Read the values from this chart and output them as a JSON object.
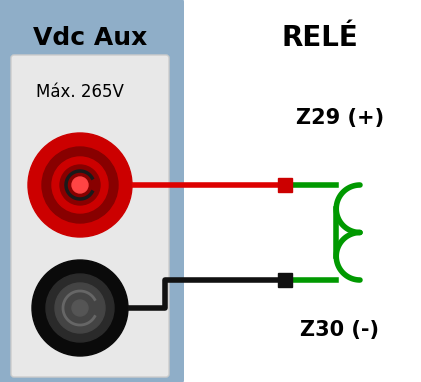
{
  "title_left": "Vdc Aux",
  "title_right": "RELÉ",
  "subtitle_left": "Máx. 265V",
  "label_z29": "Z29 (+)",
  "label_z30": "Z30 (-)",
  "bg_color": "#ffffff",
  "outer_panel_bg": "#8faec8",
  "inner_panel_bg": "#e8e8e8",
  "inner_panel_border": "#cccccc",
  "red_outer": "#cc0000",
  "red_mid1": "#aa0000",
  "red_mid2": "#880000",
  "red_arc_color": "#222222",
  "red_inner": "#ff4444",
  "black_outer": "#0a0a0a",
  "black_mid1": "#2a2a2a",
  "black_mid2": "#444444",
  "black_arc_color": "#777777",
  "black_inner": "#555555",
  "wire_red": "#dd0000",
  "wire_black": "#111111",
  "wire_green": "#009900",
  "dot_red": "#cc0000",
  "dot_black": "#111111"
}
